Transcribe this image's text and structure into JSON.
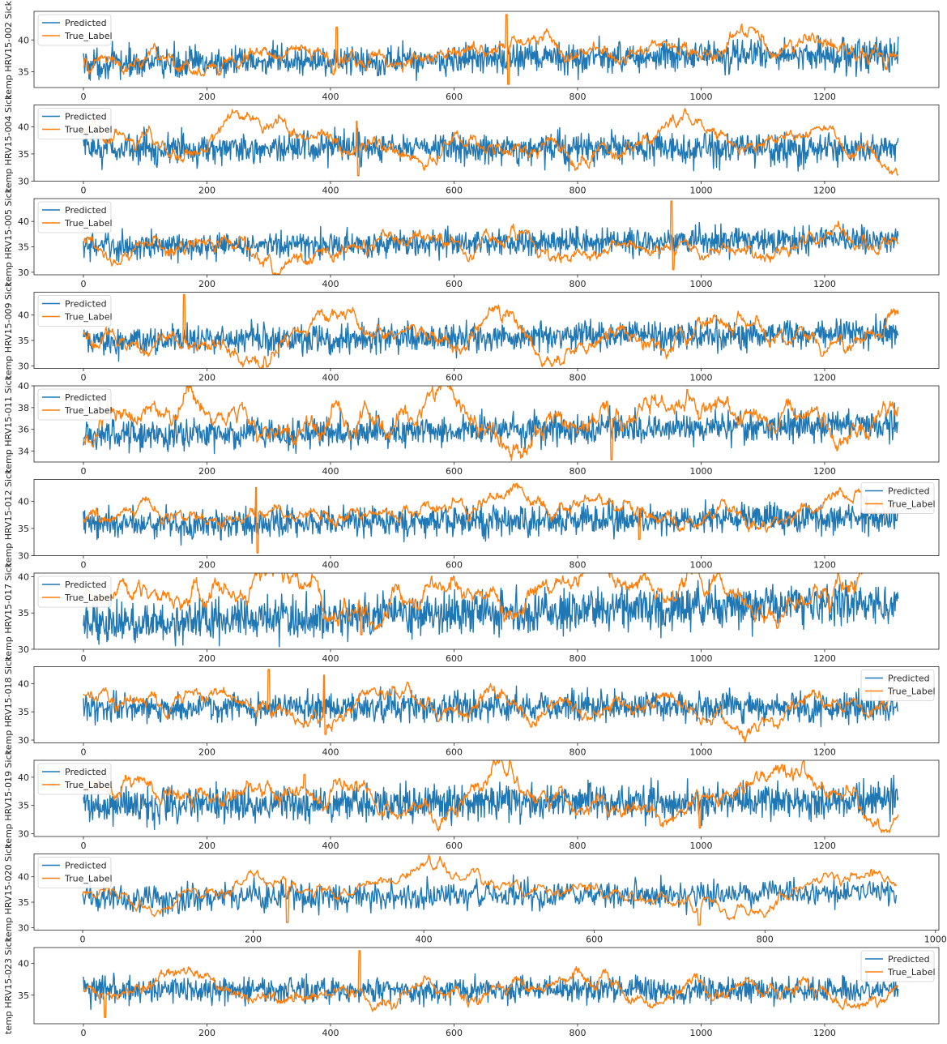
{
  "colors": {
    "predicted": "#1f77b4",
    "true_label": "#ff7f0e"
  },
  "chart_data": [
    {
      "type": "line",
      "ylabel": "temp HRV15-002 Sick",
      "xlim": [
        -80,
        1385
      ],
      "ylim": [
        32.5,
        44.5
      ],
      "xticks": [
        0,
        200,
        400,
        600,
        800,
        1000,
        1200
      ],
      "yticks": [
        35,
        40
      ],
      "legend": "upper-left",
      "series": [
        {
          "name": "Predicted",
          "n": 1320,
          "mean": 37.0,
          "spread": 2.2,
          "trend": [
            -0.8,
            0.8
          ]
        },
        {
          "name": "True_Label",
          "n": 1320,
          "mean": 37.5,
          "spread": 1.0,
          "trend": [
            -1.5,
            1.0
          ],
          "spikes": [
            [
              410,
              42
            ],
            [
              685,
              44
            ],
            [
              688,
              33
            ],
            [
              1080,
              42
            ]
          ]
        }
      ]
    },
    {
      "type": "line",
      "ylabel": "temp HRV15-004 Sick",
      "xlim": [
        -80,
        1385
      ],
      "ylim": [
        30,
        44
      ],
      "xticks": [
        0,
        200,
        400,
        600,
        800,
        1000,
        1200
      ],
      "yticks": [
        30,
        35,
        40
      ],
      "legend": "upper-left",
      "series": [
        {
          "name": "Predicted",
          "n": 1320,
          "mean": 36.0,
          "spread": 2.6,
          "trend": [
            0,
            0
          ]
        },
        {
          "name": "True_Label",
          "n": 1320,
          "mean": 36.8,
          "spread": 1.1,
          "trend": [
            0.8,
            -0.8
          ],
          "spikes": [
            [
              443,
              41
            ],
            [
              445,
              31
            ]
          ]
        }
      ]
    },
    {
      "type": "line",
      "ylabel": "temp HRV15-005 Sick",
      "xlim": [
        -80,
        1385
      ],
      "ylim": [
        29.5,
        44.5
      ],
      "xticks": [
        0,
        200,
        400,
        600,
        800,
        1000,
        1200
      ],
      "yticks": [
        30,
        35,
        40
      ],
      "legend": "upper-left",
      "series": [
        {
          "name": "Predicted",
          "n": 1320,
          "mean": 35.5,
          "spread": 2.4,
          "trend": [
            -0.5,
            1.0
          ]
        },
        {
          "name": "True_Label",
          "n": 1320,
          "mean": 36.0,
          "spread": 1.2,
          "trend": [
            -1.0,
            1.0
          ],
          "spikes": [
            [
              952,
              44
            ],
            [
              955,
              30.5
            ]
          ]
        }
      ]
    },
    {
      "type": "line",
      "ylabel": "temp HRV15-009 Sick",
      "xlim": [
        -80,
        1385
      ],
      "ylim": [
        29.5,
        44.5
      ],
      "xticks": [
        0,
        200,
        400,
        600,
        800,
        1000,
        1200
      ],
      "yticks": [
        30,
        35,
        40
      ],
      "legend": "upper-left",
      "series": [
        {
          "name": "Predicted",
          "n": 1320,
          "mean": 35.8,
          "spread": 2.6,
          "trend": [
            -1.0,
            0.8
          ]
        },
        {
          "name": "True_Label",
          "n": 1320,
          "mean": 36.5,
          "spread": 1.3,
          "trend": [
            -1.0,
            0.5
          ],
          "spikes": [
            [
              163,
              44
            ]
          ]
        }
      ]
    },
    {
      "type": "line",
      "ylabel": "temp HRV15-011 Sick",
      "xlim": [
        -80,
        1385
      ],
      "ylim": [
        33,
        40
      ],
      "xticks": [
        0,
        200,
        400,
        600,
        800,
        1000,
        1200
      ],
      "yticks": [
        34,
        36,
        38,
        40
      ],
      "legend": "upper-left",
      "series": [
        {
          "name": "Predicted",
          "n": 1320,
          "mean": 35.8,
          "spread": 1.3,
          "trend": [
            -0.3,
            0.6
          ]
        },
        {
          "name": "True_Label",
          "n": 1320,
          "mean": 36.5,
          "spread": 0.8,
          "trend": [
            -0.5,
            0.3
          ],
          "spikes": [
            [
              165,
              39.3
            ],
            [
              855,
              33.2
            ]
          ]
        }
      ]
    },
    {
      "type": "line",
      "ylabel": "temp HRV15-012 Sick",
      "xlim": [
        -80,
        1385
      ],
      "ylim": [
        30,
        44
      ],
      "xticks": [
        0,
        200,
        400,
        600,
        800,
        1000,
        1200
      ],
      "yticks": [
        30,
        35,
        40
      ],
      "legend": "upper-right",
      "series": [
        {
          "name": "Predicted",
          "n": 1320,
          "mean": 36.5,
          "spread": 2.5,
          "trend": [
            -0.8,
            0.5
          ]
        },
        {
          "name": "True_Label",
          "n": 1320,
          "mean": 36.8,
          "spread": 1.0,
          "trend": [
            0.5,
            1.0
          ],
          "spikes": [
            [
              280,
              42.5
            ],
            [
              282,
              30.5
            ],
            [
              900,
              33
            ]
          ]
        }
      ]
    },
    {
      "type": "line",
      "ylabel": "temp HRV15-017 Sick",
      "xlim": [
        -80,
        1385
      ],
      "ylim": [
        30,
        40.5
      ],
      "xticks": [
        0,
        200,
        400,
        600,
        800,
        1000,
        1200
      ],
      "yticks": [
        30,
        35,
        40
      ],
      "legend": "upper-left",
      "series": [
        {
          "name": "Predicted",
          "n": 1320,
          "mean": 35.0,
          "spread": 2.6,
          "trend": [
            -1.5,
            1.5
          ]
        },
        {
          "name": "True_Label",
          "n": 1320,
          "mean": 36.5,
          "spread": 1.2,
          "trend": [
            0.5,
            1.5
          ],
          "spikes": [
            [
              450,
              32
            ]
          ]
        }
      ]
    },
    {
      "type": "line",
      "ylabel": "temp HRV15-018 Sick",
      "xlim": [
        -80,
        1385
      ],
      "ylim": [
        29.5,
        43
      ],
      "xticks": [
        0,
        200,
        400,
        600,
        800,
        1000,
        1200
      ],
      "yticks": [
        30,
        35,
        40
      ],
      "legend": "upper-right",
      "series": [
        {
          "name": "Predicted",
          "n": 1320,
          "mean": 35.8,
          "spread": 2.4,
          "trend": [
            0,
            0
          ]
        },
        {
          "name": "True_Label",
          "n": 1320,
          "mean": 36.5,
          "spread": 1.1,
          "trend": [
            1.0,
            -0.5
          ],
          "spikes": [
            [
              300,
              42.5
            ],
            [
              390,
              41.5
            ],
            [
              392,
              31
            ]
          ]
        }
      ]
    },
    {
      "type": "line",
      "ylabel": "temp HRV15-019 Sick",
      "xlim": [
        -80,
        1385
      ],
      "ylim": [
        29.5,
        43
      ],
      "xticks": [
        0,
        200,
        400,
        600,
        800,
        1000,
        1200
      ],
      "yticks": [
        30,
        35,
        40
      ],
      "legend": "upper-left",
      "series": [
        {
          "name": "Predicted",
          "n": 1320,
          "mean": 35.5,
          "spread": 2.8,
          "trend": [
            -0.5,
            0.5
          ]
        },
        {
          "name": "True_Label",
          "n": 1320,
          "mean": 36.0,
          "spread": 1.3,
          "trend": [
            0,
            0
          ],
          "spikes": [
            [
              358,
              40.5
            ],
            [
              998,
              31
            ]
          ]
        }
      ]
    },
    {
      "type": "line",
      "ylabel": "temp HRV15-020 Sick",
      "xlim": [
        -57,
        1004
      ],
      "ylim": [
        29.5,
        44.5
      ],
      "xticks": [
        0,
        200,
        400,
        600,
        800,
        1000
      ],
      "yticks": [
        30,
        35,
        40
      ],
      "legend": "upper-left",
      "series": [
        {
          "name": "Predicted",
          "n": 955,
          "mean": 36.2,
          "spread": 2.5,
          "trend": [
            -0.5,
            0.8
          ]
        },
        {
          "name": "True_Label",
          "n": 955,
          "mean": 36.3,
          "spread": 1.1,
          "trend": [
            0,
            0
          ],
          "spikes": [
            [
              723,
              30.5
            ],
            [
              240,
              31
            ]
          ]
        }
      ]
    },
    {
      "type": "line",
      "ylabel": "temp HRV15-023 Sick",
      "xlim": [
        -80,
        1385
      ],
      "ylim": [
        30.5,
        42.5
      ],
      "xticks": [
        0,
        200,
        400,
        600,
        800,
        1000,
        1200
      ],
      "yticks": [
        35,
        40
      ],
      "legend": "upper-right",
      "series": [
        {
          "name": "Predicted",
          "n": 1320,
          "mean": 35.8,
          "spread": 1.8,
          "trend": [
            0,
            0
          ]
        },
        {
          "name": "True_Label",
          "n": 1320,
          "mean": 36.5,
          "spread": 0.8,
          "trend": [
            0,
            -0.5
          ],
          "spikes": [
            [
              447,
              42
            ],
            [
              35,
              31.5
            ],
            [
              340,
              34
            ]
          ]
        }
      ]
    }
  ]
}
